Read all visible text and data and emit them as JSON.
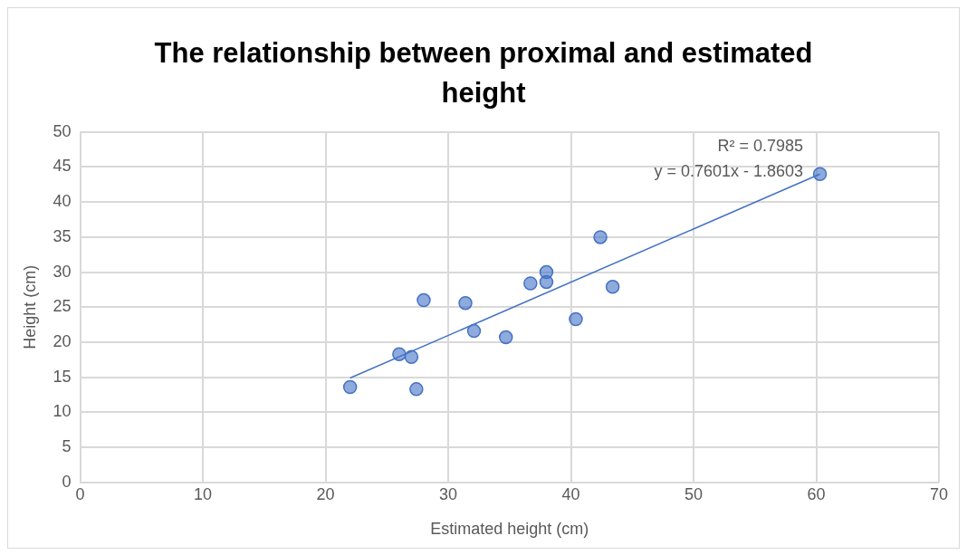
{
  "chart_data": {
    "type": "scatter",
    "title": "The relationship between proximal and estimated height",
    "xlabel": "Estimated height (cm)",
    "ylabel": "Height (cm)",
    "xlim": [
      0,
      70
    ],
    "xticks": [
      0,
      10,
      20,
      30,
      40,
      50,
      60,
      70
    ],
    "ylim": [
      0,
      50
    ],
    "yticks": [
      0,
      5,
      10,
      15,
      20,
      25,
      30,
      35,
      40,
      45,
      50
    ],
    "grid": true,
    "legend": false,
    "marker": "circle",
    "annotations": [
      "R² = 0.7985",
      "y = 0.7601x - 1.8603"
    ],
    "series": [
      {
        "type": "scatter",
        "color": "#4472c4",
        "x": [
          22.0,
          26.0,
          27.0,
          27.4,
          28.0,
          31.4,
          32.1,
          34.7,
          36.7,
          38.0,
          38.0,
          40.4,
          42.4,
          43.4,
          60.3
        ],
        "values": [
          13.6,
          18.3,
          17.9,
          13.3,
          26.0,
          25.6,
          21.6,
          20.7,
          28.4,
          30.0,
          28.6,
          23.3,
          35.0,
          27.9,
          44.0
        ]
      },
      {
        "type": "line",
        "color": "#4472c4",
        "marker": "none",
        "x": [
          22.0,
          60.3
        ],
        "values": [
          14.9,
          44.0
        ]
      }
    ]
  }
}
